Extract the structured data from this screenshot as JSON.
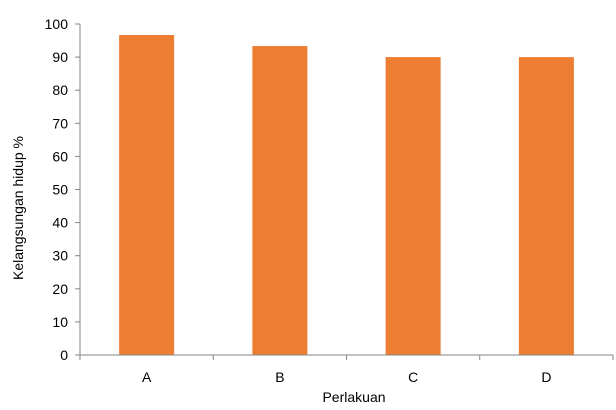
{
  "chart_data": {
    "type": "bar",
    "title": "",
    "xlabel": "Perlakuan",
    "ylabel": "Kelangsungan hidup %",
    "categories": [
      "A",
      "B",
      "C",
      "D"
    ],
    "values": [
      96.67,
      93.33,
      90,
      90
    ],
    "ylim": [
      0,
      100
    ],
    "yticks": [
      "0",
      "10",
      "20",
      "30",
      "40",
      "50",
      "60",
      "70",
      "80",
      "90",
      "100"
    ],
    "grid": false,
    "legend": "none",
    "bar_color": "#ED7D31",
    "axis_color": "#868686"
  }
}
